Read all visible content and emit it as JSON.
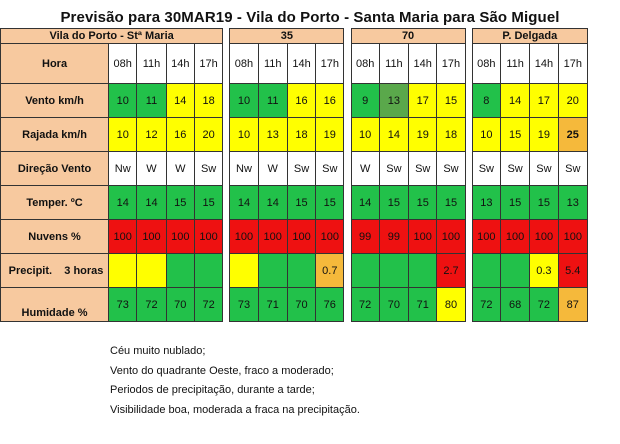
{
  "title": "Previsão para 30MAR19 - Vila do Porto - Santa Maria para São Miguel",
  "locations": [
    "Vila do Porto - Stª Maria",
    "35",
    "70",
    "P. Delgada"
  ],
  "hours": [
    "08h",
    "11h",
    "14h",
    "17h"
  ],
  "row_labels": {
    "hora": "Hora",
    "vento": "Vento km/h",
    "rajada": "Rajada km/h",
    "direcao": "Direção  Vento",
    "temper": "Temper. ºC",
    "nuvens": "Nuvens %",
    "precip": "Precipit.    3 horas",
    "humidade": "Humidade %"
  },
  "vento": [
    "10",
    "11",
    "14",
    "18",
    "10",
    "11",
    "16",
    "16",
    "9",
    "13",
    "17",
    "15",
    "8",
    "14",
    "17",
    "20"
  ],
  "rajada": [
    "10",
    "12",
    "16",
    "20",
    "10",
    "13",
    "18",
    "19",
    "10",
    "14",
    "19",
    "18",
    "10",
    "15",
    "19",
    "25"
  ],
  "direcao": [
    "Nw",
    "W",
    "W",
    "Sw",
    "Nw",
    "W",
    "Sw",
    "Sw",
    "W",
    "Sw",
    "Sw",
    "Sw",
    "Sw",
    "Sw",
    "Sw",
    "Sw"
  ],
  "temper": [
    "14",
    "14",
    "15",
    "15",
    "14",
    "14",
    "15",
    "15",
    "14",
    "15",
    "15",
    "15",
    "13",
    "15",
    "15",
    "13"
  ],
  "nuvens": [
    "100",
    "100",
    "100",
    "100",
    "100",
    "100",
    "100",
    "100",
    "99",
    "99",
    "100",
    "100",
    "100",
    "100",
    "100",
    "100"
  ],
  "precip": [
    "",
    "",
    "",
    "",
    "",
    "",
    "",
    "0.7",
    "",
    "",
    "",
    "2.7",
    "",
    "",
    "0.3",
    "5.4"
  ],
  "humidade": [
    "73",
    "72",
    "70",
    "72",
    "73",
    "71",
    "70",
    "76",
    "72",
    "70",
    "71",
    "80",
    "72",
    "68",
    "72",
    "87"
  ],
  "cell_colors": {
    "green": "#22c14a",
    "dark_green": "#5aa84b",
    "yellow": "#ffff00",
    "orange": "#f5b93b",
    "red": "#ee1111",
    "label_bg": "#f7c99f"
  },
  "notes": [
    "Céu muito nublado;",
    "Vento do quadrante Oeste, fraco a moderado;",
    "Periodos de precipitação, durante a tarde;",
    "Visibilidade boa, moderada a fraca na precipitação."
  ]
}
